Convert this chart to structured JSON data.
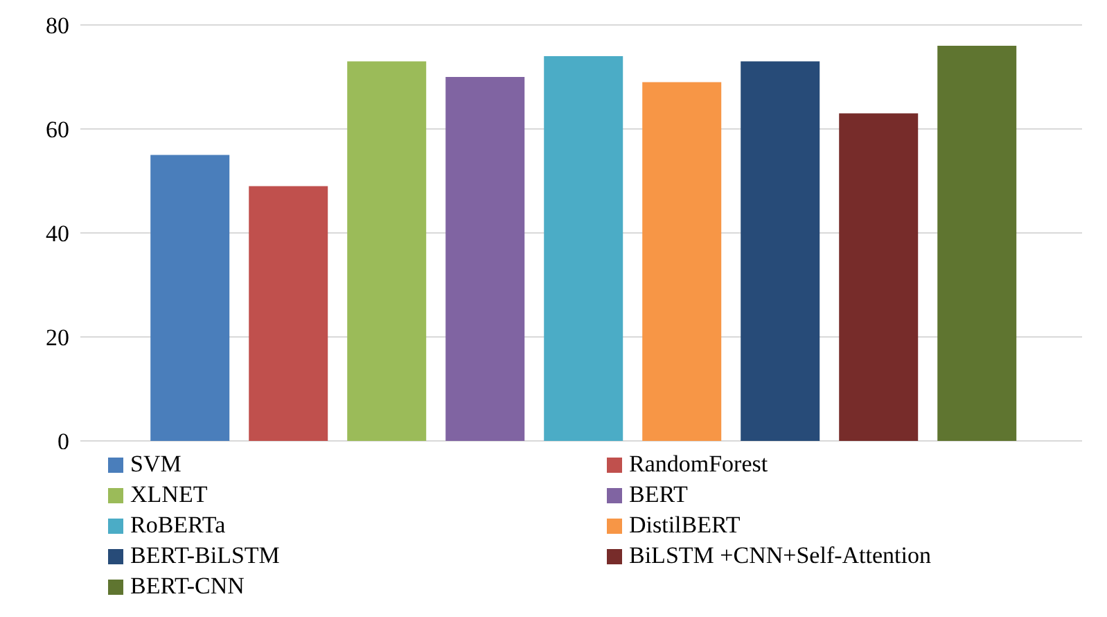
{
  "chart_data": {
    "type": "bar",
    "categories": [
      null
    ],
    "series": [
      {
        "name": "SVM",
        "color": "#4a7ebb",
        "values": [
          55
        ]
      },
      {
        "name": "RandomForest",
        "color": "#c0504d",
        "values": [
          49
        ]
      },
      {
        "name": "XLNET",
        "color": "#9bbb59",
        "values": [
          73
        ]
      },
      {
        "name": "BERT",
        "color": "#8064a2",
        "values": [
          70
        ]
      },
      {
        "name": "RoBERTa",
        "color": "#4bacc6",
        "values": [
          74
        ]
      },
      {
        "name": "DistilBERT",
        "color": "#f79646",
        "values": [
          69
        ]
      },
      {
        "name": "BERT-BiLSTM",
        "color": "#274b78",
        "values": [
          73
        ]
      },
      {
        "name": "BiLSTM +CNN+Self-Attention",
        "color": "#772c2a",
        "values": [
          63
        ]
      },
      {
        "name": "BERT-CNN",
        "color": "#5f7530",
        "values": [
          76
        ]
      }
    ],
    "ylim": [
      0,
      80
    ],
    "yticks": [
      0,
      20,
      40,
      60,
      80
    ],
    "grid": "y",
    "legend": "bottom"
  }
}
